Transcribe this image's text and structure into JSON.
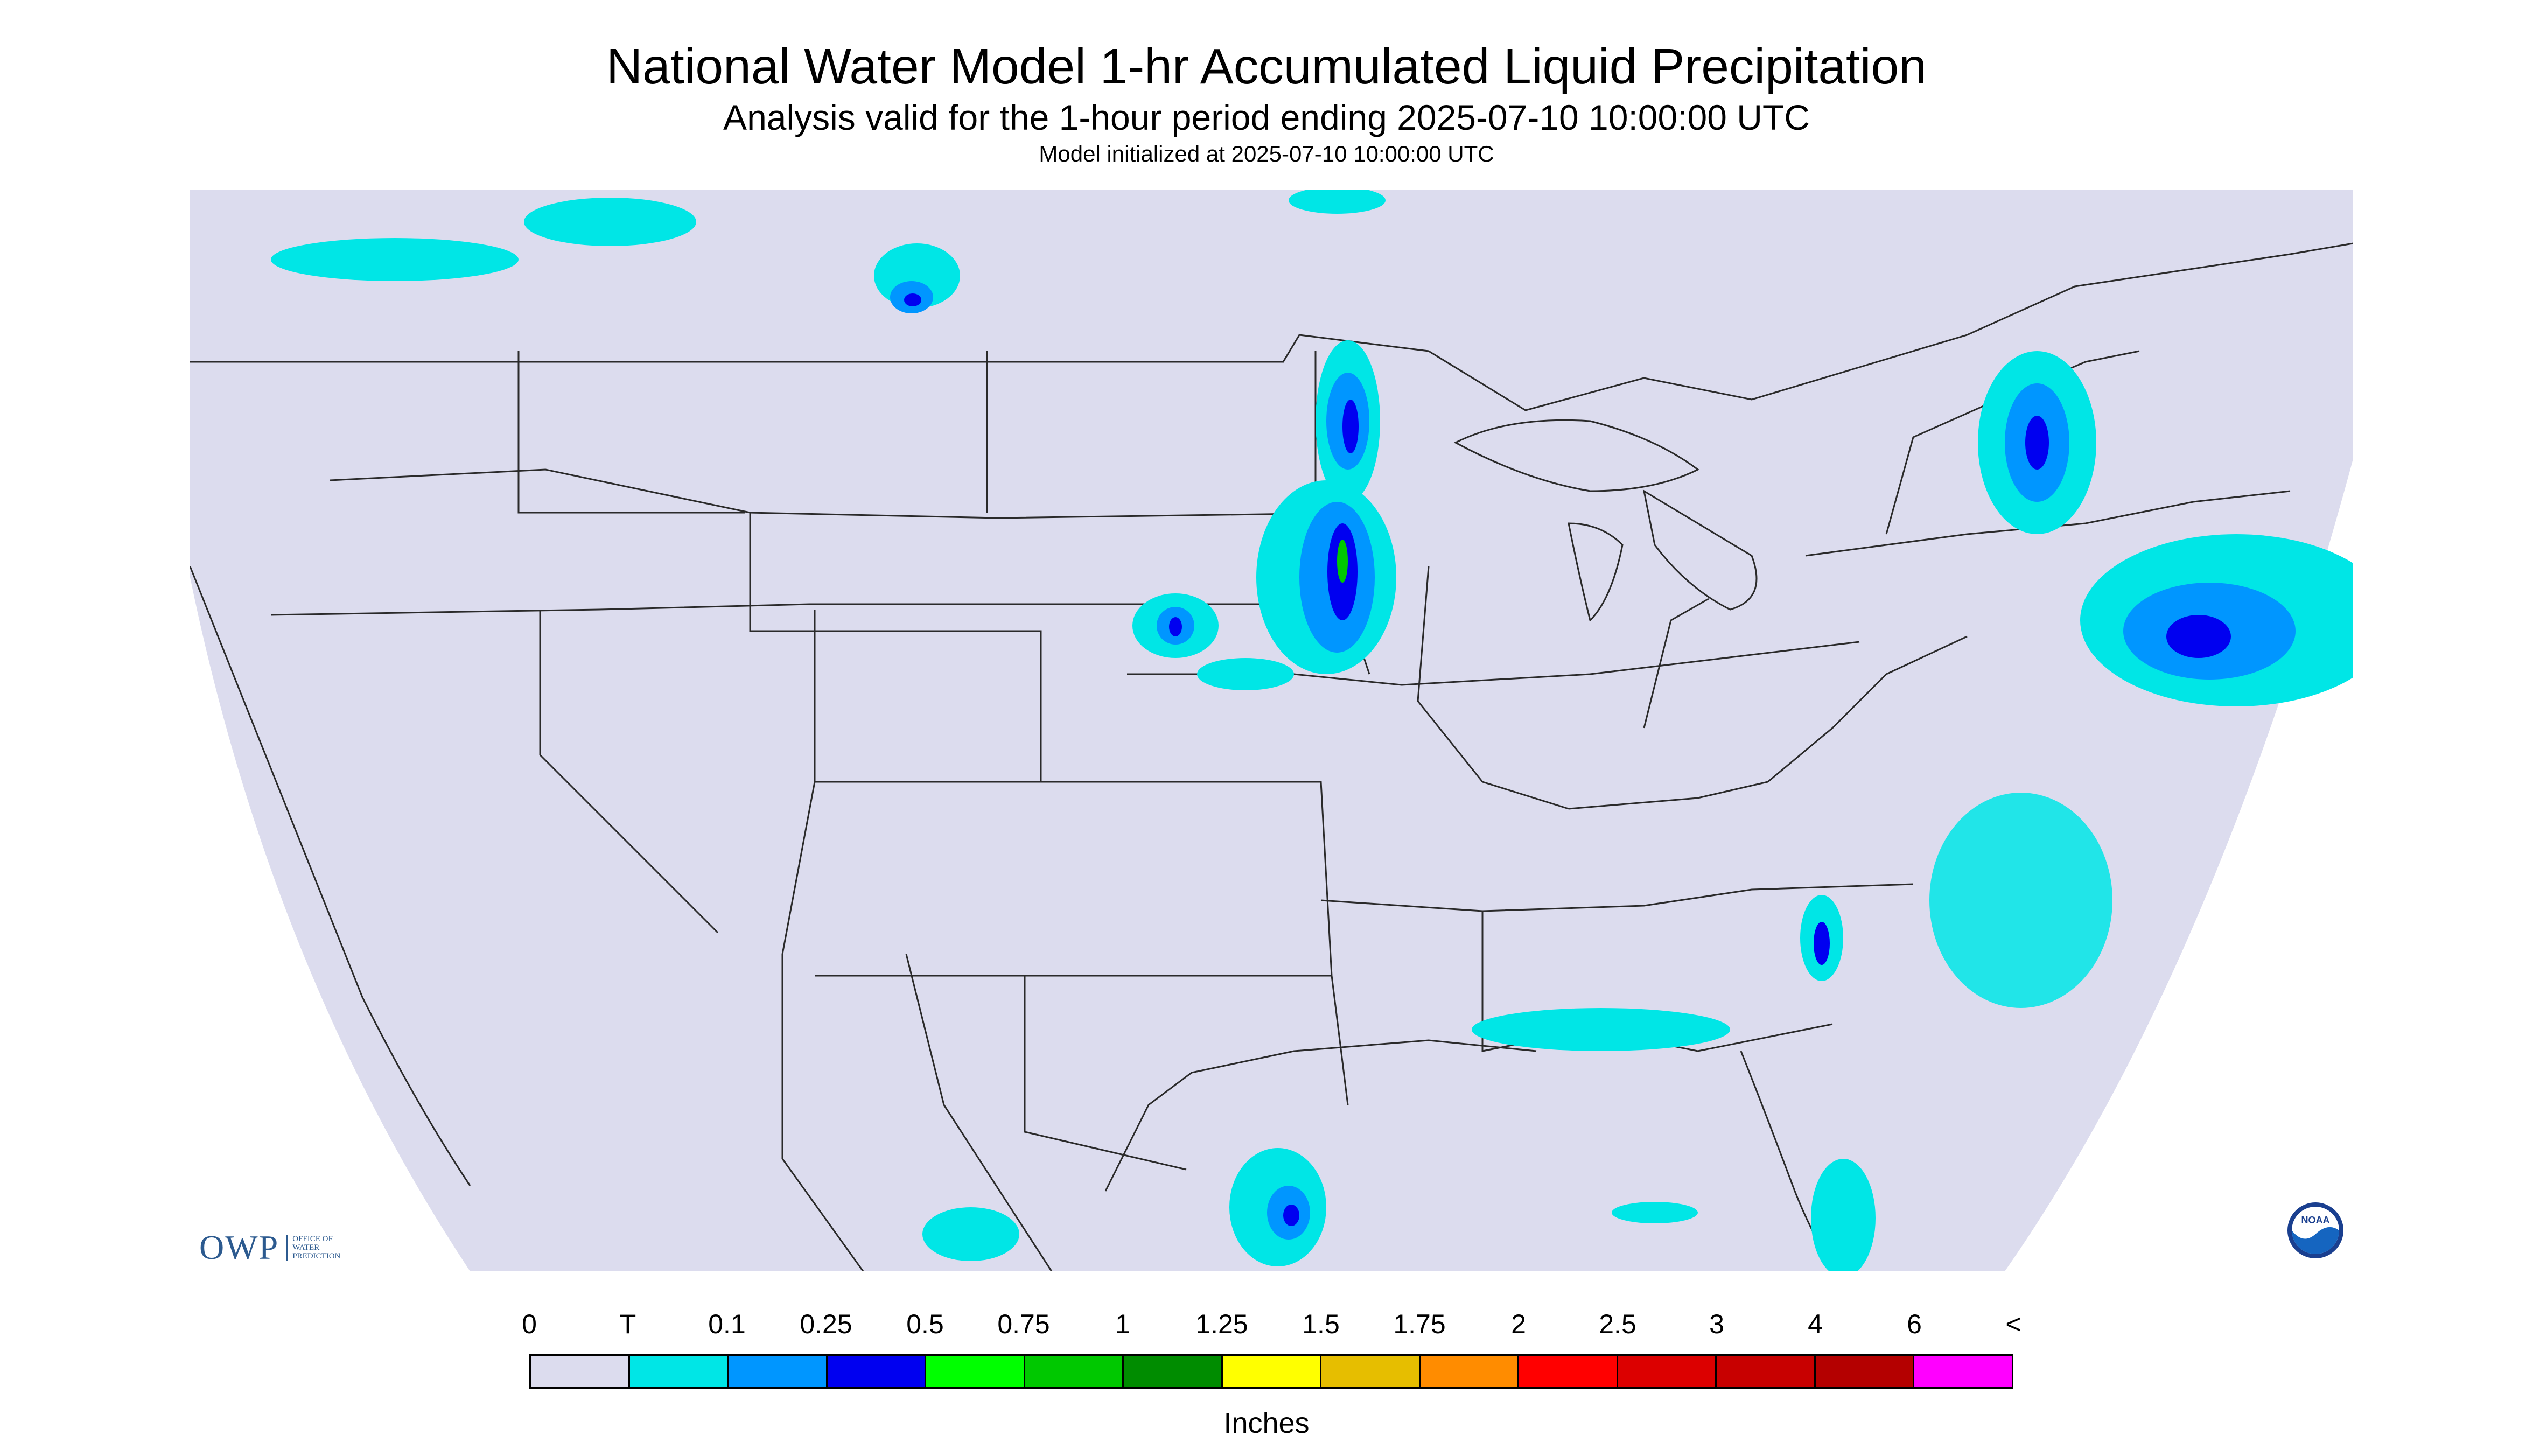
{
  "header": {
    "title": "National Water Model 1-hr Accumulated Liquid Precipitation",
    "subtitle": "Analysis valid for the 1-hour period ending 2025-07-10 10:00:00 UTC",
    "init_text": "Model initialized at 2025-07-10 10:00:00 UTC"
  },
  "legend": {
    "labels": [
      "0",
      "T",
      "0.1",
      "0.25",
      "0.5",
      "0.75",
      "1",
      "1.25",
      "1.5",
      "1.75",
      "2",
      "2.5",
      "3",
      "4",
      "6",
      "<"
    ],
    "colors": [
      "#dcdcee",
      "#00e6e6",
      "#0096ff",
      "#0000f0",
      "#00ff00",
      "#00c800",
      "#008c00",
      "#ffff00",
      "#e6be00",
      "#ff8c00",
      "#ff0000",
      "#dc0000",
      "#c80000",
      "#b40000",
      "#ff00ff",
      "#9b4fd0"
    ],
    "units": "Inches"
  },
  "logos": {
    "owp_mark": "OWP",
    "owp_text": "OFFICE OF\nWATER\nPREDICTION",
    "noaa_text": "NOAA"
  },
  "map": {
    "background_color": "#dcdcee",
    "boundary_color": "#2a2a2a"
  }
}
